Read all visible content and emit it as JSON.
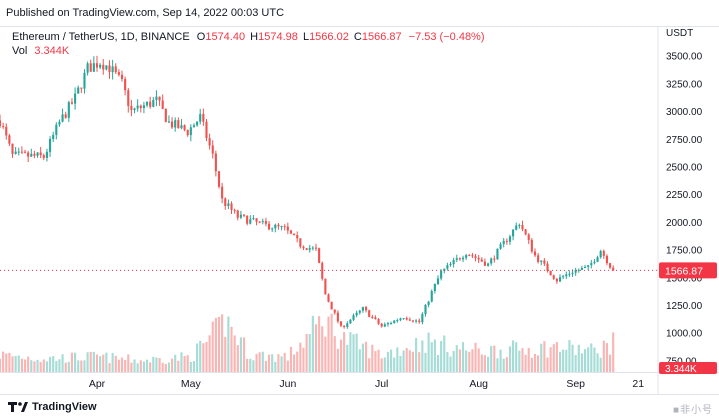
{
  "header": {
    "published": "Published on TradingView.com, Sep 14, 2022 00:03 UTC"
  },
  "legend": {
    "symbol": "Ethereum / TetherUS, 1D, BINANCE",
    "o_label": "O",
    "o_value": "1574.40",
    "h_label": "H",
    "h_value": "1574.98",
    "l_label": "L",
    "l_value": "1566.02",
    "c_label": "C",
    "c_value": "1566.87",
    "change": "−7.53 (−0.48%)",
    "vol_label": "Vol",
    "vol_value": "3.344K"
  },
  "footer": {
    "brand": "TradingView",
    "watermark": "■非小号"
  },
  "colors": {
    "up": "#26a69a",
    "down": "#ef5350",
    "up_vol": "#a5dcd6",
    "down_vol": "#f8b5b3",
    "grid": "#f0f3fa",
    "price_line": "#f23645"
  },
  "chart_data": {
    "type": "candlestick",
    "title": "Ethereum / TetherUS, 1D, BINANCE",
    "y_unit": "USDT",
    "ylim": [
      650,
      3700
    ],
    "yticks": [
      "3500.00",
      "3250.00",
      "3000.00",
      "2750.00",
      "2500.00",
      "2250.00",
      "2000.00",
      "1750.00",
      "1500.00",
      "1250.00",
      "1000.00",
      "750.00"
    ],
    "ytick_values": [
      3500,
      3250,
      3000,
      2750,
      2500,
      2250,
      2000,
      1750,
      1500,
      1250,
      1000,
      750
    ],
    "xticks": [
      "Apr",
      "May",
      "Jun",
      "Jul",
      "Aug",
      "Sep",
      "21"
    ],
    "xtick_dates": [
      "2022-04-01",
      "2022-05-01",
      "2022-06-01",
      "2022-07-01",
      "2022-08-01",
      "2022-09-01",
      "2022-09-21"
    ],
    "xlim": [
      "2022-03-01",
      "2022-09-27"
    ],
    "last_price": 1566.87,
    "last_price_label": "1566.87",
    "last_volume_label": "3.344K",
    "volume_max_k": 30,
    "grid": false,
    "price_anchors": [
      [
        "2022-03-01",
        2920
      ],
      [
        "2022-03-05",
        2600
      ],
      [
        "2022-03-10",
        2600
      ],
      [
        "2022-03-15",
        2590
      ],
      [
        "2022-03-20",
        2900
      ],
      [
        "2022-03-25",
        3120
      ],
      [
        "2022-03-29",
        3390
      ],
      [
        "2022-04-02",
        3450
      ],
      [
        "2022-04-05",
        3400
      ],
      [
        "2022-04-09",
        3250
      ],
      [
        "2022-04-12",
        3000
      ],
      [
        "2022-04-16",
        3050
      ],
      [
        "2022-04-20",
        3100
      ],
      [
        "2022-04-24",
        2900
      ],
      [
        "2022-04-30",
        2820
      ],
      [
        "2022-05-04",
        2950
      ],
      [
        "2022-05-08",
        2600
      ],
      [
        "2022-05-11",
        2200
      ],
      [
        "2022-05-16",
        2050
      ],
      [
        "2022-05-24",
        1980
      ],
      [
        "2022-05-31",
        1940
      ],
      [
        "2022-06-05",
        1800
      ],
      [
        "2022-06-10",
        1750
      ],
      [
        "2022-06-13",
        1350
      ],
      [
        "2022-06-18",
        1050
      ],
      [
        "2022-06-25",
        1220
      ],
      [
        "2022-07-01",
        1060
      ],
      [
        "2022-07-08",
        1150
      ],
      [
        "2022-07-13",
        1100
      ],
      [
        "2022-07-17",
        1370
      ],
      [
        "2022-07-20",
        1550
      ],
      [
        "2022-07-28",
        1730
      ],
      [
        "2022-08-04",
        1620
      ],
      [
        "2022-08-10",
        1850
      ],
      [
        "2022-08-14",
        2000
      ],
      [
        "2022-08-19",
        1700
      ],
      [
        "2022-08-26",
        1480
      ],
      [
        "2022-08-31",
        1560
      ],
      [
        "2022-09-05",
        1590
      ],
      [
        "2022-09-09",
        1750
      ],
      [
        "2022-09-13",
        1566
      ]
    ],
    "volume_anchors": [
      [
        "2022-03-01",
        9
      ],
      [
        "2022-03-15",
        7
      ],
      [
        "2022-04-01",
        8
      ],
      [
        "2022-04-15",
        6
      ],
      [
        "2022-05-01",
        8
      ],
      [
        "2022-05-10",
        22
      ],
      [
        "2022-05-12",
        27
      ],
      [
        "2022-05-20",
        9
      ],
      [
        "2022-06-01",
        8
      ],
      [
        "2022-06-13",
        28
      ],
      [
        "2022-06-18",
        18
      ],
      [
        "2022-07-01",
        9
      ],
      [
        "2022-07-15",
        16
      ],
      [
        "2022-07-20",
        14
      ],
      [
        "2022-08-01",
        11
      ],
      [
        "2022-08-15",
        12
      ],
      [
        "2022-08-26",
        13
      ],
      [
        "2022-09-07",
        11
      ],
      [
        "2022-09-13",
        15
      ]
    ]
  }
}
